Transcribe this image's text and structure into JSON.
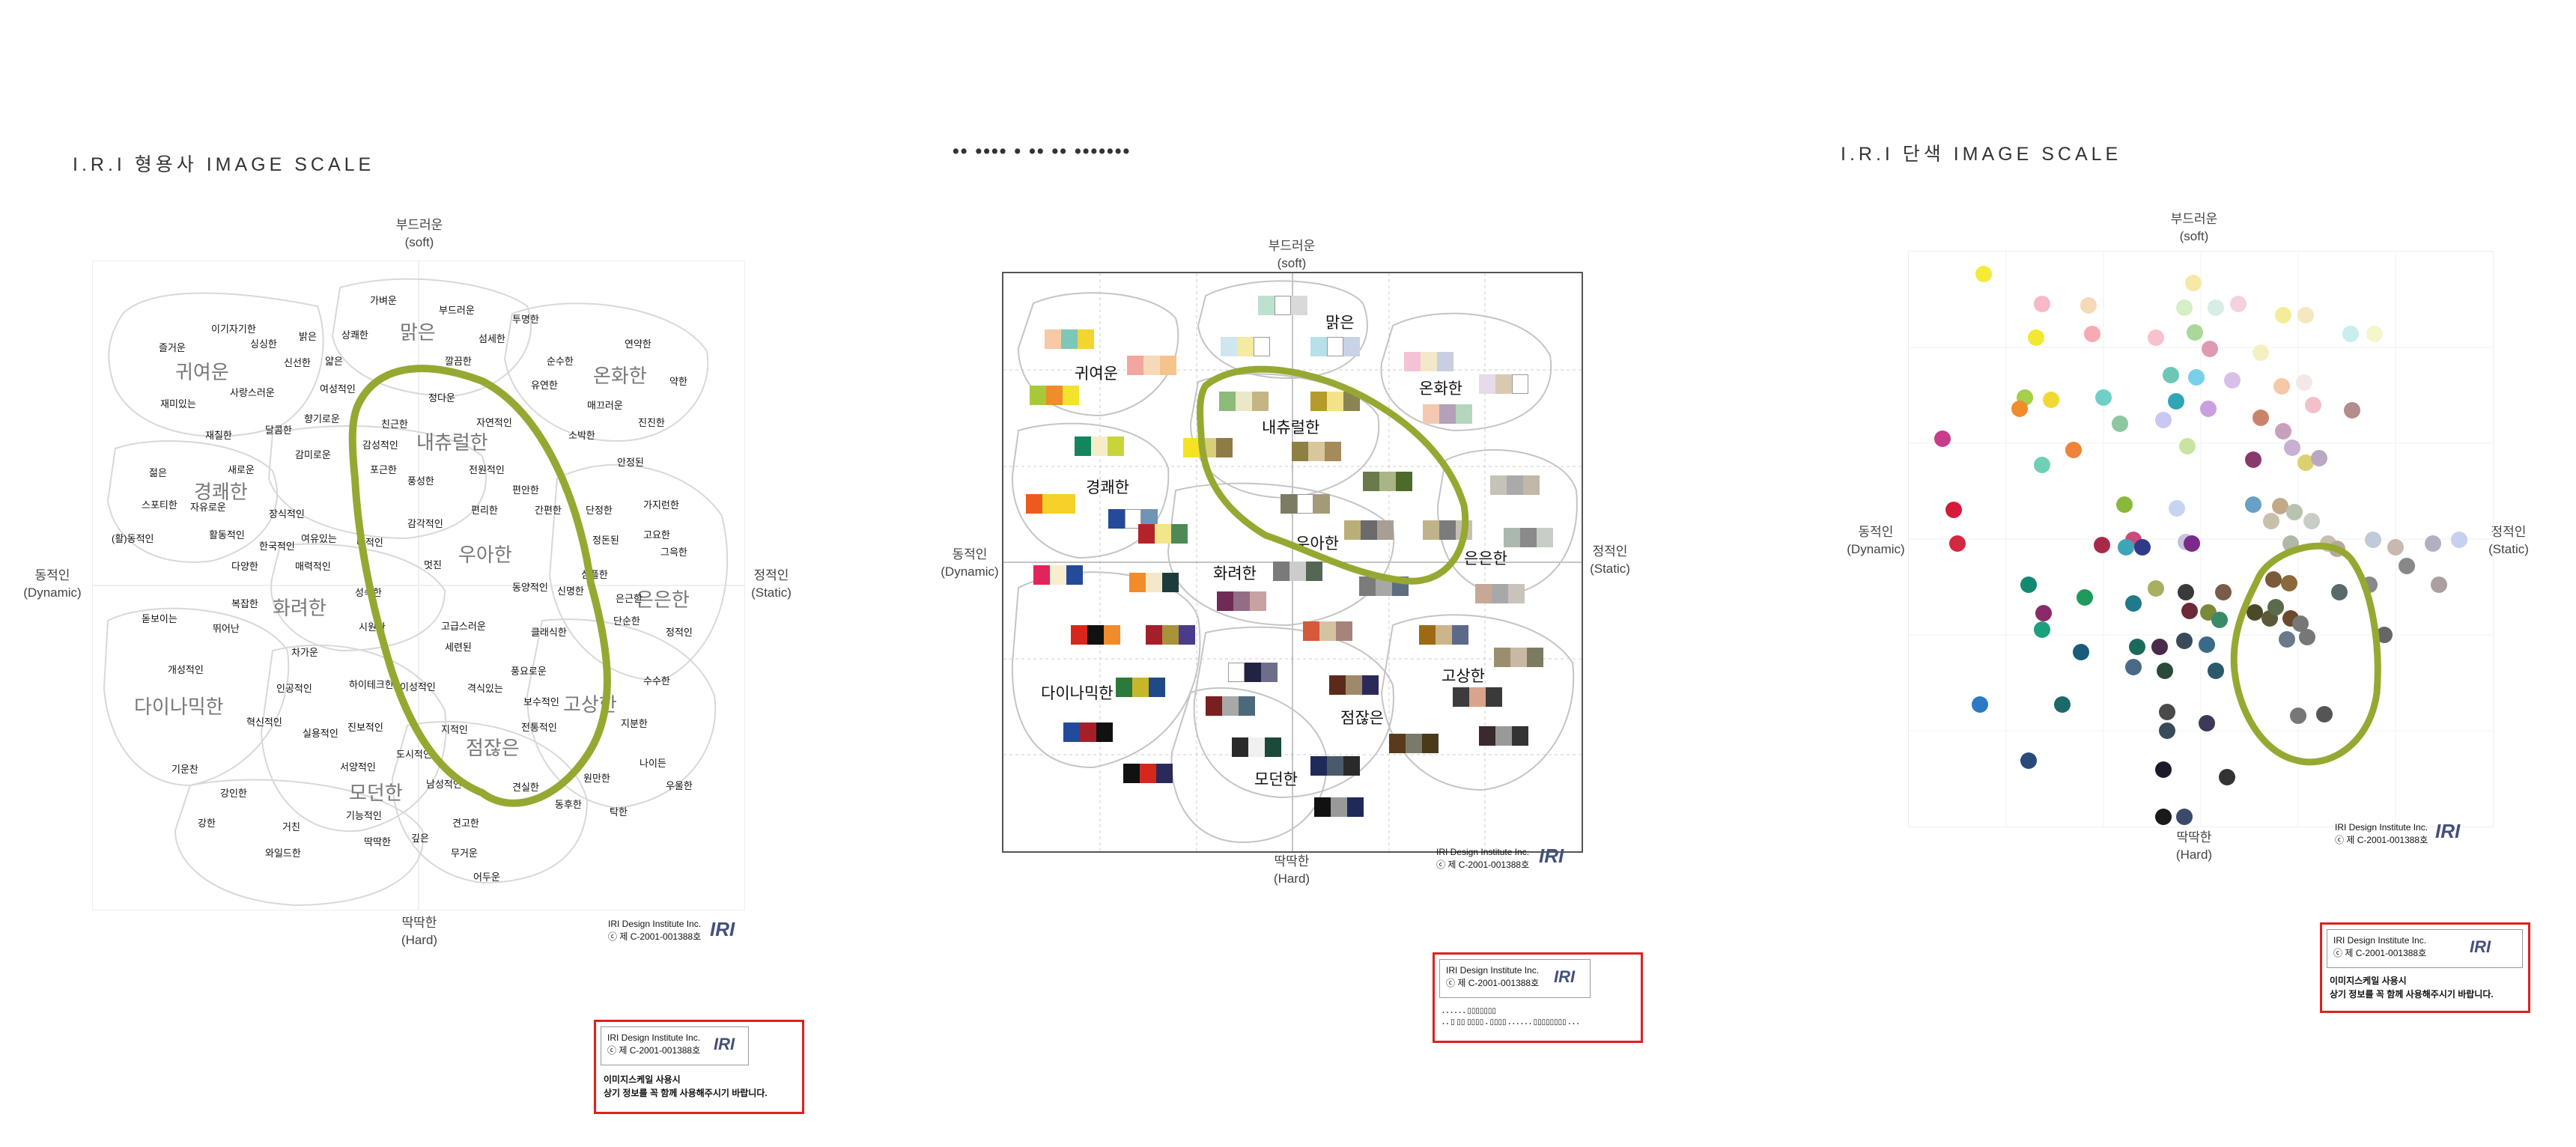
{
  "panel1": {
    "title": "I.R.I 형용사 IMAGE SCALE",
    "axis": {
      "top": "부드러운",
      "top_en": "(soft)",
      "bottom": "딱딱한",
      "bottom_en": "(Hard)",
      "left": "동적인",
      "left_en": "(Dynamic)",
      "right": "정적인",
      "right_en": "(Static)"
    },
    "big_words": [
      "귀여운",
      "맑은",
      "온화한",
      "경쾌한",
      "내츄럴한",
      "우아한",
      "화려한",
      "은은한",
      "다이나믹한",
      "고상한",
      "점잖은",
      "모던한"
    ],
    "small_words": [
      "가벼운",
      "부드러운",
      "투명한",
      "이기자기한",
      "밝은",
      "상쾌한",
      "섬세한",
      "연약한",
      "즐거운",
      "싱싱한",
      "신선한",
      "얇은",
      "깔끔한",
      "순수한",
      "유연한",
      "약한",
      "재미있는",
      "사랑스러운",
      "여성적인",
      "정다운",
      "자연적인",
      "매끄러운",
      "진진한",
      "재칠한",
      "달콤한",
      "향기로운",
      "친근한",
      "소박한",
      "안정된",
      "젊은",
      "새로운",
      "감미로운",
      "감성적인",
      "전원적인",
      "자유로운",
      "포근한",
      "풍성한",
      "편안한",
      "단정한",
      "가지런한",
      "스포티한",
      "활동적인",
      "장식적인",
      "여유있는",
      "내적인",
      "편리한",
      "간편한",
      "정돈된",
      "그윽한",
      "(활)동적인",
      "한국적인",
      "고요한",
      "감각적인",
      "심플한",
      "신명한",
      "다양한",
      "매력적인",
      "멋진",
      "동양적인",
      "은근한",
      "돋보이는",
      "복잡한",
      "성숙한",
      "고급스러운",
      "클래식한",
      "단순한",
      "정적인",
      "뛰어난",
      "시원한",
      "세련된",
      "풍요로운",
      "개성적인",
      "차가운",
      "인공적인",
      "하이테크한",
      "이성적인",
      "격식있는",
      "보수적인",
      "수수한",
      "혁신적인",
      "실용적인",
      "진보적인",
      "지적인",
      "전통적인",
      "지분한",
      "기운찬",
      "서양적인",
      "도시적인",
      "남성적인",
      "견실한",
      "나이든",
      "강인한",
      "기능적인",
      "원만한",
      "우울한",
      "강한",
      "거친",
      "깊은",
      "동후한",
      "탁한",
      "와일드한",
      "딱딱한",
      "견고한",
      "무거운",
      "어두운"
    ],
    "copyright_line1": "IRI Design Institute Inc.",
    "copyright_line2": "ⓒ 제 C-2001-001388호",
    "boxed_line1": "IRI Design Institute Inc.",
    "boxed_line2": "ⓒ 제 C-2001-001388호",
    "boxed_note1": "이미지스케일 사용시",
    "boxed_note2": "상기 정보를 꼭 함께 사용해주시기 바랍니다.",
    "logo": "IRI"
  },
  "panel2": {
    "title": "•• •••• • •• •• •••••••",
    "axis": {
      "top": "부드러운",
      "top_en": "(soft)",
      "bottom": "딱딱한",
      "bottom_en": "(Hard)",
      "left": "동적인",
      "left_en": "(Dynamic)",
      "right": "정적인",
      "right_en": "(Static)"
    },
    "labels": [
      "맑은",
      "귀여운",
      "온화한",
      "내츄럴한",
      "경쾌한",
      "우아한",
      "은은한",
      "화려한",
      "다이나믹한",
      "고상한",
      "점잖은",
      "모던한"
    ],
    "copyright_line1": "IRI Design Institute Inc.",
    "copyright_line2": "ⓒ 제 C-2001-001388호",
    "boxed_line1": "IRI Design Institute Inc.",
    "boxed_line2": "ⓒ 제 C-2001-001388호",
    "boxed_note1": ". . . . . . ▯▯▯▯▯▯▯",
    "boxed_note2": ". . ▯ ▯▯ ▯▯▯▯ . ▯▯▯▯ . . . . . . ▯▯▯▯▯▯▯▯ . . .",
    "logo": "IRI"
  },
  "panel3": {
    "title": "I.R.I 단색 IMAGE SCALE",
    "axis": {
      "top": "부드러운",
      "top_en": "(soft)",
      "bottom": "딱딱한",
      "bottom_en": "(Hard)",
      "left": "동적인",
      "left_en": "(Dynamic)",
      "right": "정적인",
      "right_en": "(Static)"
    },
    "copyright_line1": "IRI Design Institute Inc.",
    "copyright_line2": "ⓒ 제 C-2001-001388호",
    "boxed_line1": "IRI Design Institute Inc.",
    "boxed_line2": "ⓒ 제 C-2001-001388호",
    "boxed_note1": "이미지스케일 사용시",
    "boxed_note2": "상기 정보를 꼭 함께 사용해주시기 바랍니다.",
    "logo": "IRI"
  },
  "colors": {
    "highlight": "#97a832",
    "red_box": "#e02020",
    "logo": "#44507a"
  }
}
